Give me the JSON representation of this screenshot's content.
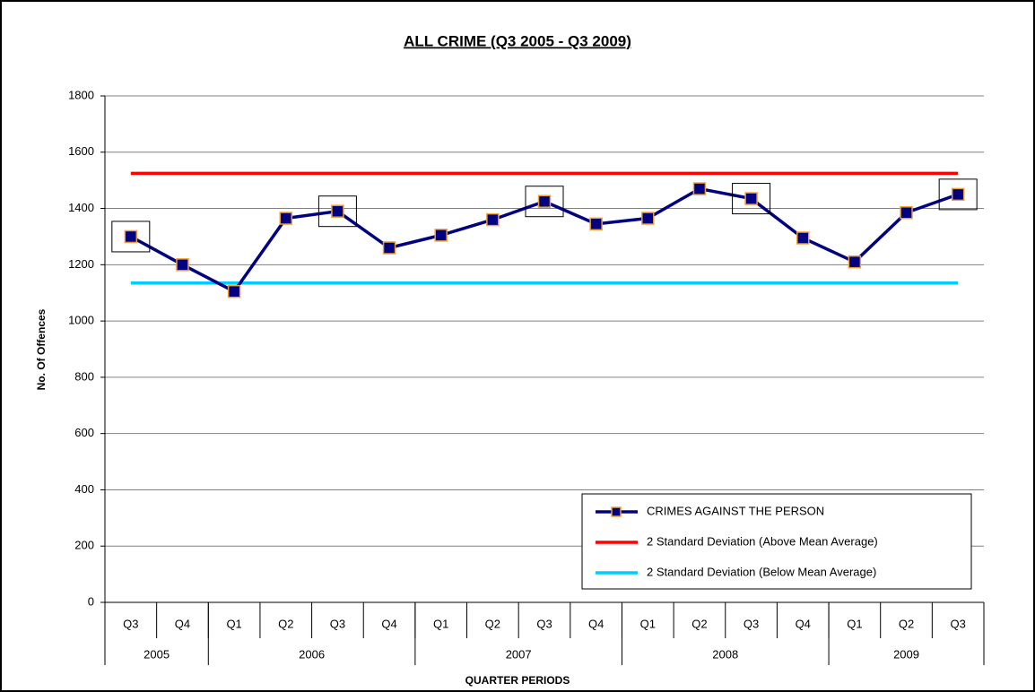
{
  "chart_data": {
    "type": "line",
    "title": "ALL CRIME (Q3 2005 - Q3 2009)",
    "x_label": "QUARTER PERIODS",
    "y_label": "No. Of Offences",
    "categories": [
      "Q3",
      "Q4",
      "Q1",
      "Q2",
      "Q3",
      "Q4",
      "Q1",
      "Q2",
      "Q3",
      "Q4",
      "Q1",
      "Q2",
      "Q3",
      "Q4",
      "Q1",
      "Q2",
      "Q3"
    ],
    "groups": [
      {
        "label": "2005",
        "count": 2
      },
      {
        "label": "2006",
        "count": 4
      },
      {
        "label": "2007",
        "count": 4
      },
      {
        "label": "2008",
        "count": 4
      },
      {
        "label": "2009",
        "count": 3
      }
    ],
    "series": [
      {
        "name": "CRIMES AGAINST THE PERSON",
        "color": "#000080",
        "marker_edge": "#f0a030",
        "values": [
          1300,
          1200,
          1105,
          1365,
          1390,
          1260,
          1305,
          1360,
          1425,
          1345,
          1365,
          1470,
          1435,
          1295,
          1210,
          1385,
          1450
        ]
      },
      {
        "name": "2 Standard Deviation (Above Mean Average)",
        "color": "#ff0000",
        "values": [
          1525,
          1525,
          1525,
          1525,
          1525,
          1525,
          1525,
          1525,
          1525,
          1525,
          1525,
          1525,
          1525,
          1525,
          1525,
          1525,
          1525
        ]
      },
      {
        "name": "2 Standard Deviation (Below Mean Average)",
        "color": "#00ccff",
        "values": [
          1135,
          1135,
          1135,
          1135,
          1135,
          1135,
          1135,
          1135,
          1135,
          1135,
          1135,
          1135,
          1135,
          1135,
          1135,
          1135,
          1135
        ]
      }
    ],
    "highlighted": [
      0,
      4,
      8,
      12,
      16
    ],
    "ylim": [
      0,
      1800
    ],
    "yticks": [
      0,
      200,
      400,
      600,
      800,
      1000,
      1200,
      1400,
      1600,
      1800
    ],
    "grid": true,
    "legend": "lower right"
  }
}
